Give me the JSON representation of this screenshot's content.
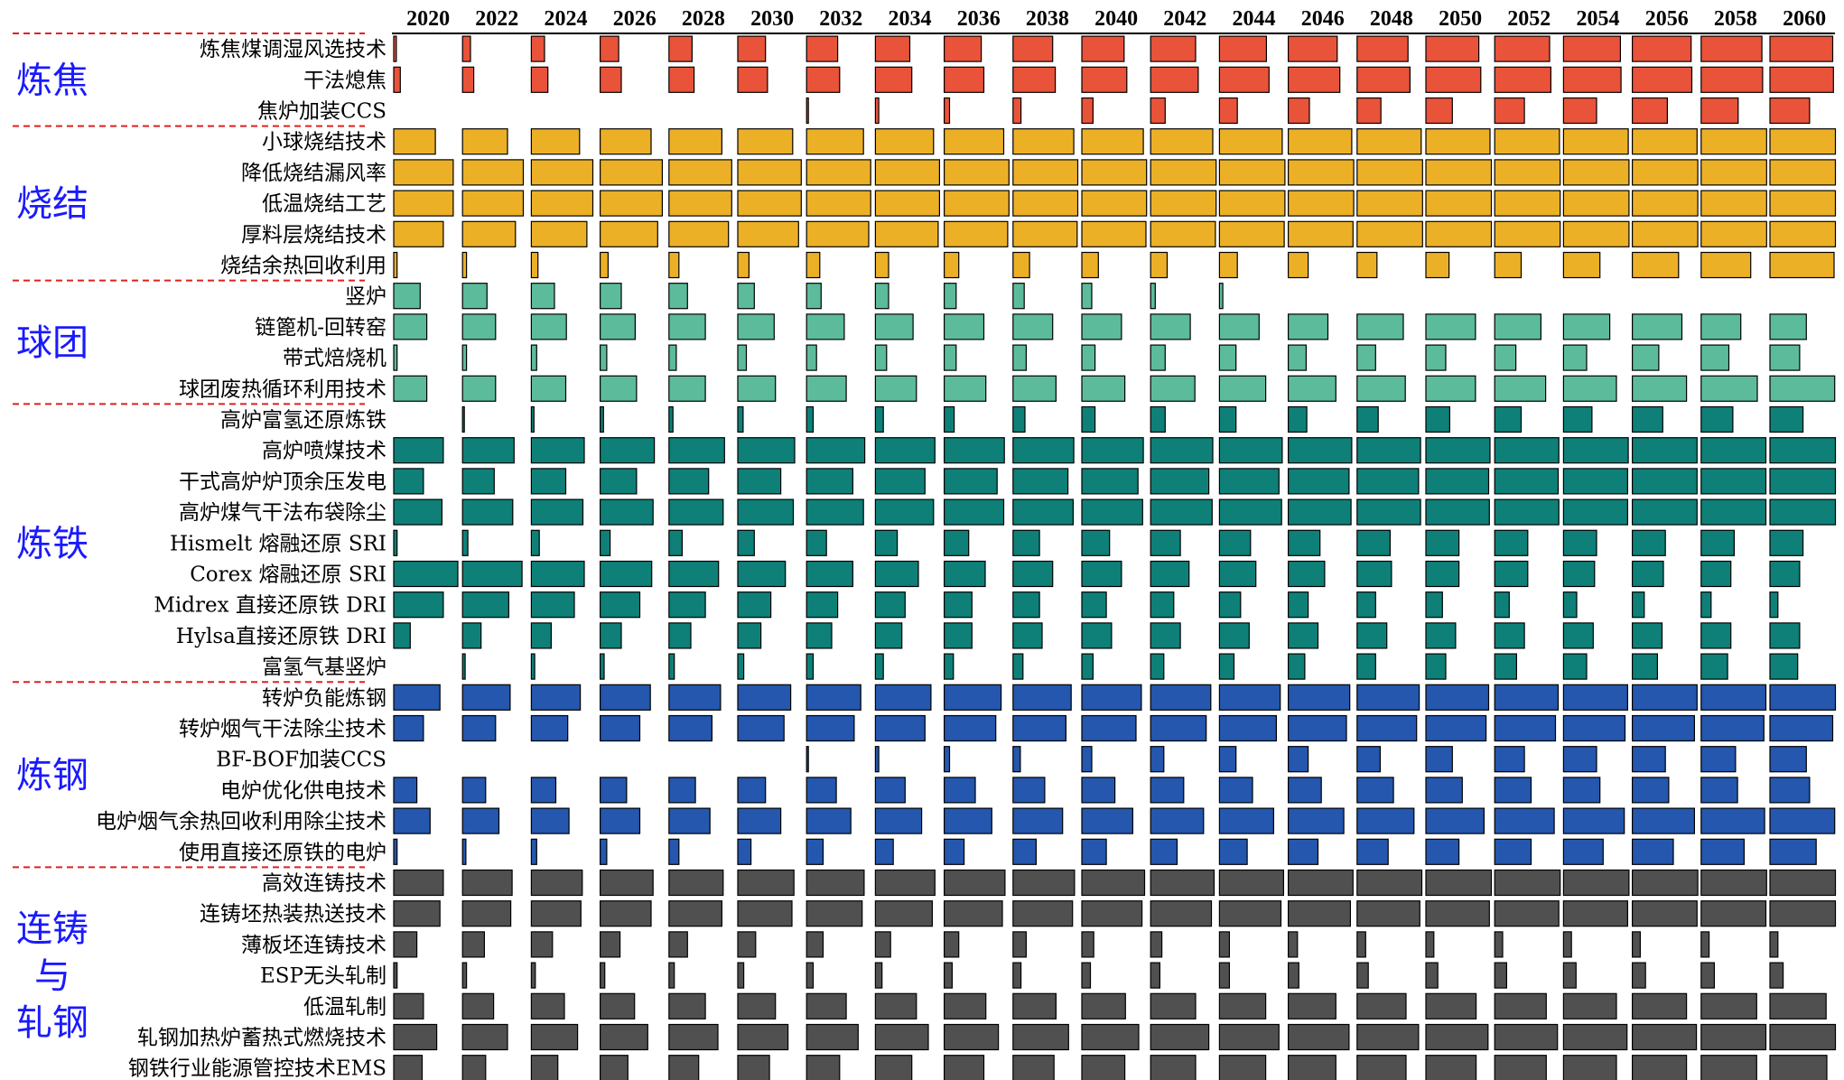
{
  "chart_data": {
    "type": "bar",
    "years": [
      "2020",
      "2022",
      "2024",
      "2026",
      "2028",
      "2030",
      "2032",
      "2034",
      "2036",
      "2038",
      "2040",
      "2042",
      "2044",
      "2046",
      "2048",
      "2050",
      "2052",
      "2054",
      "2056",
      "2058",
      "2060"
    ],
    "groups": [
      {
        "name": "炼焦",
        "color": "#e8533a",
        "rows": [
          {
            "label": "炼焦煤调湿风选技术",
            "values": [
              0.04,
              0.12,
              0.2,
              0.28,
              0.35,
              0.42,
              0.47,
              0.52,
              0.56,
              0.6,
              0.64,
              0.68,
              0.71,
              0.74,
              0.77,
              0.8,
              0.83,
              0.86,
              0.89,
              0.92,
              0.95
            ]
          },
          {
            "label": "干法熄焦",
            "values": [
              0.1,
              0.17,
              0.25,
              0.32,
              0.38,
              0.45,
              0.5,
              0.55,
              0.6,
              0.64,
              0.68,
              0.72,
              0.75,
              0.78,
              0.8,
              0.83,
              0.85,
              0.87,
              0.9,
              0.93,
              0.96
            ]
          },
          {
            "label": "焦炉加装CCS",
            "values": [
              0,
              0,
              0,
              0,
              0,
              0,
              0.02,
              0.05,
              0.08,
              0.12,
              0.17,
              0.22,
              0.27,
              0.32,
              0.36,
              0.4,
              0.45,
              0.5,
              0.53,
              0.56,
              0.6
            ]
          }
        ]
      },
      {
        "name": "烧结",
        "color": "#ecb027",
        "rows": [
          {
            "label": "小球烧结技术",
            "values": [
              0.63,
              0.68,
              0.73,
              0.77,
              0.8,
              0.83,
              0.86,
              0.88,
              0.9,
              0.92,
              0.93,
              0.94,
              0.95,
              0.96,
              0.97,
              0.97,
              0.98,
              0.98,
              0.98,
              0.99,
              0.99
            ]
          },
          {
            "label": "降低烧结漏风率",
            "values": [
              0.9,
              0.92,
              0.93,
              0.94,
              0.95,
              0.96,
              0.97,
              0.97,
              0.98,
              0.98,
              0.98,
              0.99,
              0.99,
              0.99,
              0.99,
              0.99,
              0.99,
              0.99,
              0.99,
              0.99,
              0.99
            ]
          },
          {
            "label": "低温烧结工艺",
            "values": [
              0.9,
              0.92,
              0.93,
              0.94,
              0.95,
              0.96,
              0.97,
              0.97,
              0.98,
              0.98,
              0.98,
              0.99,
              0.99,
              0.99,
              0.99,
              0.99,
              0.99,
              0.99,
              0.99,
              0.99,
              0.99
            ]
          },
          {
            "label": "厚料层烧结技术",
            "values": [
              0.75,
              0.8,
              0.84,
              0.87,
              0.9,
              0.92,
              0.94,
              0.95,
              0.96,
              0.97,
              0.97,
              0.98,
              0.98,
              0.98,
              0.99,
              0.99,
              0.99,
              0.99,
              0.99,
              0.99,
              0.99
            ]
          },
          {
            "label": "烧结余热回收利用",
            "values": [
              0.05,
              0.06,
              0.1,
              0.12,
              0.15,
              0.17,
              0.2,
              0.2,
              0.22,
              0.25,
              0.25,
              0.25,
              0.27,
              0.3,
              0.3,
              0.35,
              0.4,
              0.55,
              0.7,
              0.75,
              0.97
            ]
          }
        ]
      },
      {
        "name": "球团",
        "color": "#5cbb9b",
        "rows": [
          {
            "label": "竖炉",
            "values": [
              0.4,
              0.37,
              0.35,
              0.32,
              0.28,
              0.25,
              0.22,
              0.2,
              0.18,
              0.17,
              0.15,
              0.07,
              0.05,
              0,
              0,
              0,
              0,
              0,
              0,
              0,
              0
            ]
          },
          {
            "label": "链篦机-回转窑",
            "values": [
              0.5,
              0.5,
              0.53,
              0.53,
              0.55,
              0.55,
              0.57,
              0.57,
              0.6,
              0.6,
              0.6,
              0.6,
              0.6,
              0.6,
              0.7,
              0.75,
              0.7,
              0.7,
              0.75,
              0.6,
              0.55
            ]
          },
          {
            "label": "带式焙烧机",
            "values": [
              0.05,
              0.06,
              0.08,
              0.1,
              0.11,
              0.13,
              0.15,
              0.17,
              0.18,
              0.2,
              0.2,
              0.22,
              0.25,
              0.27,
              0.28,
              0.3,
              0.32,
              0.35,
              0.4,
              0.42,
              0.45
            ]
          },
          {
            "label": "球团废热循环利用技术",
            "values": [
              0.5,
              0.5,
              0.52,
              0.55,
              0.55,
              0.57,
              0.6,
              0.62,
              0.63,
              0.65,
              0.65,
              0.67,
              0.7,
              0.72,
              0.73,
              0.75,
              0.77,
              0.8,
              0.82,
              0.85,
              0.98
            ]
          }
        ]
      },
      {
        "name": "炼铁",
        "color": "#0e8078",
        "rows": [
          {
            "label": "高炉富氢还原炼铁",
            "values": [
              0,
              0.02,
              0.04,
              0.05,
              0.06,
              0.08,
              0.1,
              0.12,
              0.15,
              0.18,
              0.2,
              0.22,
              0.25,
              0.28,
              0.32,
              0.36,
              0.4,
              0.43,
              0.46,
              0.48,
              0.5
            ]
          },
          {
            "label": "高炉喷煤技术",
            "values": [
              0.75,
              0.78,
              0.8,
              0.82,
              0.84,
              0.86,
              0.88,
              0.9,
              0.91,
              0.92,
              0.93,
              0.94,
              0.95,
              0.96,
              0.96,
              0.97,
              0.97,
              0.98,
              0.98,
              0.98,
              0.99
            ]
          },
          {
            "label": "干式高炉炉顶余压发电",
            "values": [
              0.45,
              0.48,
              0.52,
              0.55,
              0.6,
              0.65,
              0.7,
              0.75,
              0.8,
              0.83,
              0.85,
              0.88,
              0.9,
              0.92,
              0.93,
              0.95,
              0.96,
              0.97,
              0.98,
              0.98,
              0.99
            ]
          },
          {
            "label": "高炉煤气干法布袋除尘",
            "values": [
              0.73,
              0.76,
              0.78,
              0.8,
              0.82,
              0.84,
              0.86,
              0.88,
              0.9,
              0.91,
              0.92,
              0.93,
              0.94,
              0.95,
              0.96,
              0.96,
              0.97,
              0.97,
              0.98,
              0.98,
              0.99
            ]
          },
          {
            "label": "Hismelt 熔融还原 SRI",
            "values": [
              0.05,
              0.08,
              0.12,
              0.15,
              0.2,
              0.25,
              0.3,
              0.33,
              0.37,
              0.4,
              0.42,
              0.45,
              0.47,
              0.48,
              0.5,
              0.5,
              0.5,
              0.5,
              0.5,
              0.5,
              0.5
            ]
          },
          {
            "label": "Corex 熔融还原 SRI",
            "values": [
              0.97,
              0.9,
              0.8,
              0.78,
              0.75,
              0.72,
              0.7,
              0.65,
              0.62,
              0.6,
              0.6,
              0.58,
              0.55,
              0.55,
              0.52,
              0.5,
              0.5,
              0.47,
              0.47,
              0.45,
              0.45
            ]
          },
          {
            "label": "Midrex 直接还原铁 DRI",
            "values": [
              0.75,
              0.7,
              0.65,
              0.6,
              0.55,
              0.5,
              0.47,
              0.45,
              0.42,
              0.4,
              0.37,
              0.35,
              0.32,
              0.3,
              0.28,
              0.25,
              0.22,
              0.2,
              0.18,
              0.15,
              0.12
            ]
          },
          {
            "label": "Hylsa直接还原铁 DRI",
            "values": [
              0.25,
              0.28,
              0.3,
              0.32,
              0.33,
              0.35,
              0.38,
              0.4,
              0.42,
              0.44,
              0.45,
              0.45,
              0.45,
              0.45,
              0.45,
              0.45,
              0.45,
              0.45,
              0.45,
              0.45,
              0.45
            ]
          },
          {
            "label": "富氢气基竖炉",
            "values": [
              0,
              0.04,
              0.05,
              0.06,
              0.08,
              0.09,
              0.1,
              0.12,
              0.14,
              0.15,
              0.17,
              0.2,
              0.22,
              0.25,
              0.28,
              0.3,
              0.33,
              0.35,
              0.38,
              0.4,
              0.42
            ]
          }
        ]
      },
      {
        "name": "炼钢",
        "color": "#2457ad",
        "rows": [
          {
            "label": "转炉负能炼钢",
            "values": [
              0.7,
              0.72,
              0.74,
              0.76,
              0.78,
              0.8,
              0.82,
              0.84,
              0.86,
              0.88,
              0.9,
              0.91,
              0.92,
              0.93,
              0.94,
              0.95,
              0.96,
              0.97,
              0.98,
              0.98,
              0.99
            ]
          },
          {
            "label": "转炉烟气干法除尘技术",
            "values": [
              0.45,
              0.5,
              0.55,
              0.6,
              0.65,
              0.7,
              0.72,
              0.75,
              0.78,
              0.8,
              0.82,
              0.84,
              0.86,
              0.88,
              0.9,
              0.91,
              0.92,
              0.93,
              0.94,
              0.95,
              0.95
            ]
          },
          {
            "label": "BF-BOF加装CCS",
            "values": [
              0,
              0,
              0,
              0,
              0,
              0,
              0.02,
              0.05,
              0.08,
              0.11,
              0.15,
              0.2,
              0.25,
              0.3,
              0.35,
              0.4,
              0.45,
              0.5,
              0.5,
              0.52,
              0.55
            ]
          },
          {
            "label": "电炉优化供电技术",
            "values": [
              0.35,
              0.35,
              0.37,
              0.4,
              0.4,
              0.42,
              0.45,
              0.45,
              0.47,
              0.48,
              0.5,
              0.5,
              0.5,
              0.5,
              0.55,
              0.55,
              0.55,
              0.55,
              0.55,
              0.55,
              0.6
            ]
          },
          {
            "label": "电炉烟气余热回收利用除尘技术",
            "values": [
              0.55,
              0.55,
              0.57,
              0.6,
              0.62,
              0.65,
              0.67,
              0.7,
              0.72,
              0.75,
              0.77,
              0.8,
              0.82,
              0.84,
              0.86,
              0.88,
              0.9,
              0.92,
              0.94,
              0.96,
              0.98
            ]
          },
          {
            "label": "使用直接还原铁的电炉",
            "values": [
              0.05,
              0.05,
              0.08,
              0.1,
              0.15,
              0.2,
              0.25,
              0.27,
              0.3,
              0.35,
              0.37,
              0.4,
              0.42,
              0.45,
              0.47,
              0.5,
              0.55,
              0.6,
              0.62,
              0.65,
              0.7
            ]
          }
        ]
      },
      {
        "name": "连铸与轧钢",
        "color": "#505050",
        "rows": [
          {
            "label": "高效连铸技术",
            "values": [
              0.75,
              0.75,
              0.77,
              0.8,
              0.82,
              0.85,
              0.87,
              0.9,
              0.92,
              0.93,
              0.95,
              0.96,
              0.97,
              0.98,
              0.98,
              0.99,
              0.99,
              0.99,
              0.99,
              0.99,
              0.99
            ]
          },
          {
            "label": "连铸坯热装热送技术",
            "values": [
              0.7,
              0.73,
              0.75,
              0.77,
              0.8,
              0.82,
              0.84,
              0.86,
              0.88,
              0.9,
              0.91,
              0.92,
              0.93,
              0.94,
              0.95,
              0.96,
              0.97,
              0.97,
              0.98,
              0.98,
              0.99
            ]
          },
          {
            "label": "薄板坯连铸技术",
            "values": [
              0.35,
              0.33,
              0.32,
              0.3,
              0.28,
              0.27,
              0.25,
              0.23,
              0.22,
              0.2,
              0.18,
              0.17,
              0.15,
              0.14,
              0.13,
              0.12,
              0.12,
              0.12,
              0.12,
              0.12,
              0.12
            ]
          },
          {
            "label": "ESP无头轧制",
            "values": [
              0.05,
              0.06,
              0.06,
              0.07,
              0.08,
              0.09,
              0.1,
              0.1,
              0.12,
              0.12,
              0.13,
              0.14,
              0.15,
              0.16,
              0.17,
              0.18,
              0.18,
              0.19,
              0.2,
              0.2,
              0.2
            ]
          },
          {
            "label": "低温轧制",
            "values": [
              0.45,
              0.47,
              0.5,
              0.52,
              0.55,
              0.57,
              0.6,
              0.62,
              0.63,
              0.65,
              0.66,
              0.68,
              0.7,
              0.72,
              0.74,
              0.76,
              0.78,
              0.8,
              0.82,
              0.84,
              0.85
            ]
          },
          {
            "label": "轧钢加热炉蓄热式燃烧技术",
            "values": [
              0.65,
              0.68,
              0.7,
              0.72,
              0.74,
              0.76,
              0.78,
              0.8,
              0.82,
              0.84,
              0.86,
              0.88,
              0.9,
              0.92,
              0.93,
              0.94,
              0.95,
              0.96,
              0.97,
              0.98,
              0.99
            ]
          },
          {
            "label": "钢铁行业能源管控技术EMS",
            "values": [
              0.43,
              0.35,
              0.4,
              0.42,
              0.45,
              0.48,
              0.5,
              0.55,
              0.6,
              0.62,
              0.65,
              0.68,
              0.7,
              0.72,
              0.74,
              0.76,
              0.78,
              0.8,
              0.82,
              0.84,
              0.86
            ]
          }
        ]
      }
    ]
  }
}
